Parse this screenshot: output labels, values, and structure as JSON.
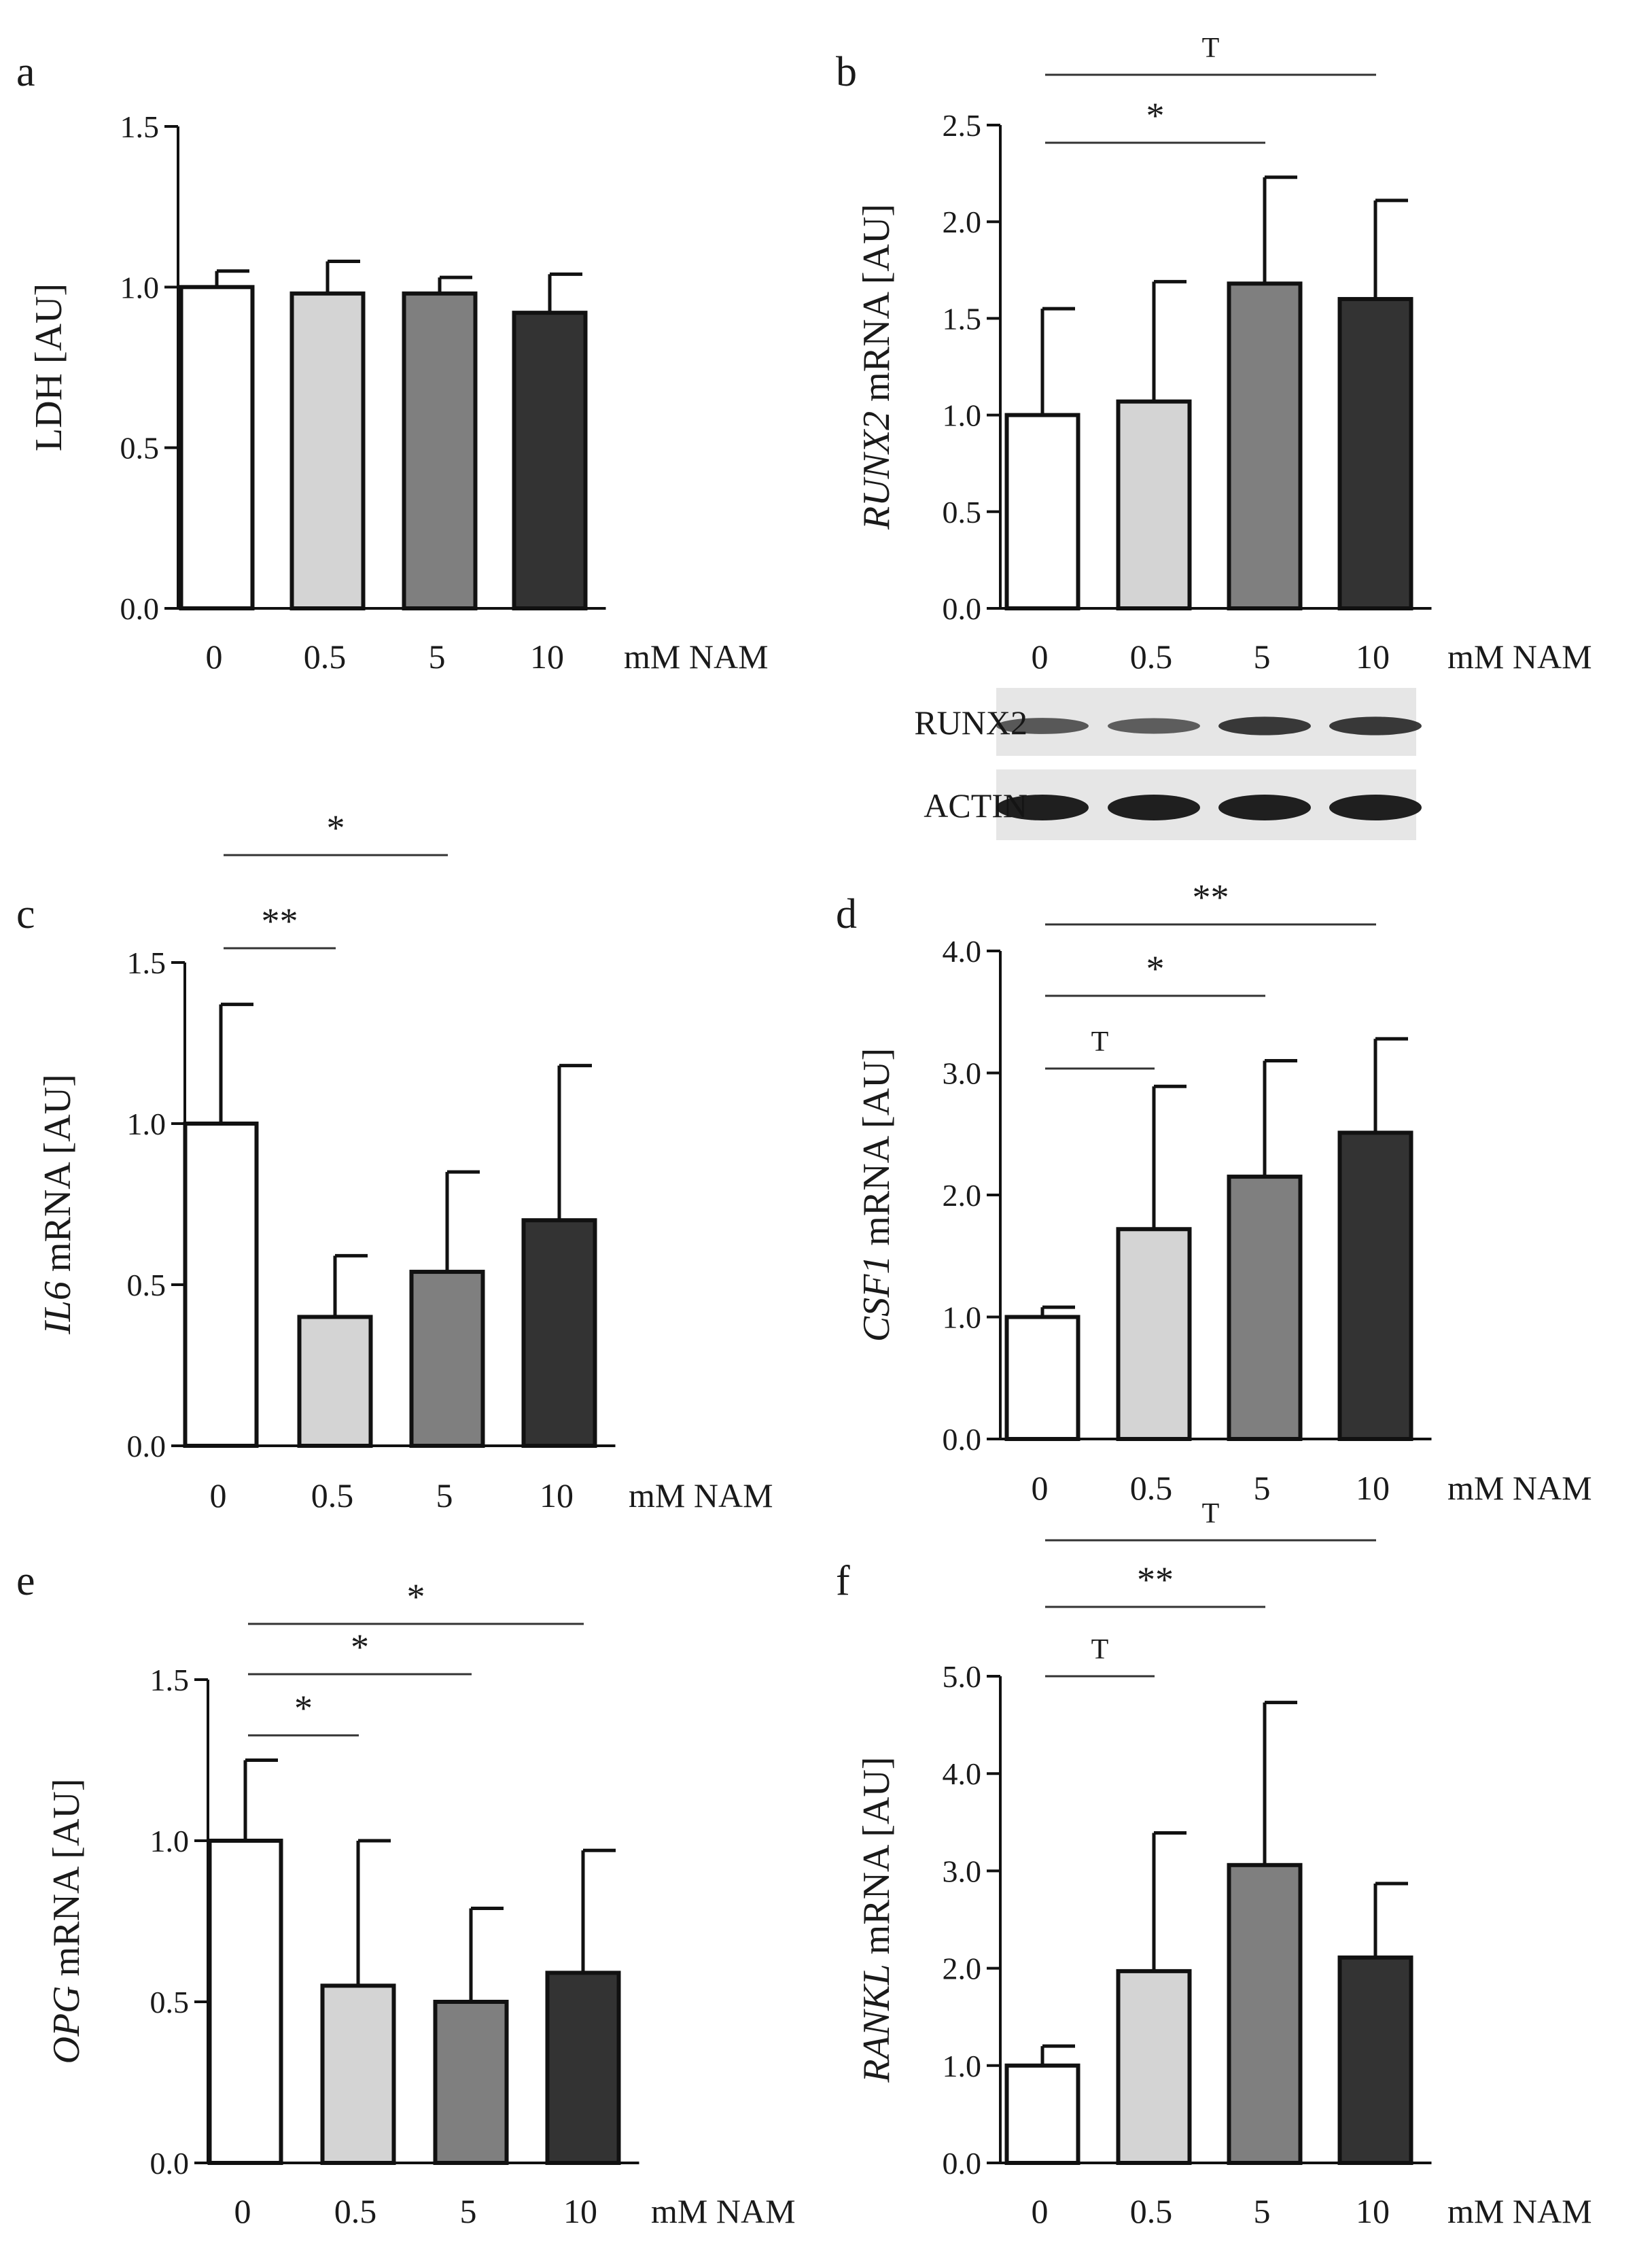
{
  "colors": {
    "bar_fills": [
      "#ffffff",
      "#d4d4d4",
      "#7f7f7f",
      "#333333"
    ],
    "stroke": "#111111",
    "blot_background": "#e6e6e6",
    "band": "#141414"
  },
  "western_blot": {
    "labels": [
      "RUNX2",
      "ACTIN"
    ],
    "intensity": [
      [
        0.55,
        0.5,
        0.8,
        0.8
      ],
      [
        1.0,
        1.0,
        1.0,
        1.0
      ]
    ]
  },
  "chart_data": [
    {
      "panel": "a",
      "type": "bar",
      "categories": [
        "0",
        "0.5",
        "5",
        "10"
      ],
      "unit_label": "mM NAM",
      "ylabel_italic": "",
      "ylabel": "LDH [AU]",
      "ylim": [
        0,
        1.5
      ],
      "yticks": [
        "0.0",
        "0.5",
        "1.0",
        "1.5"
      ],
      "ytick_values": [
        0,
        0.5,
        1.0,
        1.5
      ],
      "values": [
        1.0,
        0.98,
        0.98,
        0.92
      ],
      "errors": [
        0.05,
        0.1,
        0.05,
        0.12
      ],
      "significance": []
    },
    {
      "panel": "b",
      "type": "bar",
      "categories": [
        "0",
        "0.5",
        "5",
        "10"
      ],
      "unit_label": "mM NAM",
      "ylabel_italic": "RUNX2",
      "ylabel": " mRNA [AU]",
      "ylim": [
        0,
        2.5
      ],
      "yticks": [
        "0.0",
        "0.5",
        "1.0",
        "1.5",
        "2.0",
        "2.5"
      ],
      "ytick_values": [
        0,
        0.5,
        1.0,
        1.5,
        2.0,
        2.5
      ],
      "values": [
        1.0,
        1.07,
        1.68,
        1.6
      ],
      "errors": [
        0.55,
        0.62,
        0.55,
        0.51
      ],
      "significance": [
        {
          "from": 0,
          "to": 2,
          "label": "*"
        },
        {
          "from": 0,
          "to": 3,
          "label": "T"
        }
      ]
    },
    {
      "panel": "c",
      "type": "bar",
      "categories": [
        "0",
        "0.5",
        "5",
        "10"
      ],
      "unit_label": "mM NAM",
      "ylabel_italic": "IL6",
      "ylabel": " mRNA [AU]",
      "ylim": [
        0,
        1.5
      ],
      "yticks": [
        "0.0",
        "0.5",
        "1.0",
        "1.5"
      ],
      "ytick_values": [
        0,
        0.5,
        1.0,
        1.5
      ],
      "values": [
        1.0,
        0.4,
        0.54,
        0.7
      ],
      "errors": [
        0.37,
        0.19,
        0.31,
        0.48
      ],
      "significance": [
        {
          "from": 0,
          "to": 1,
          "label": "**"
        },
        {
          "from": 0,
          "to": 2,
          "label": "*"
        }
      ]
    },
    {
      "panel": "d",
      "type": "bar",
      "categories": [
        "0",
        "0.5",
        "5",
        "10"
      ],
      "unit_label": "mM NAM",
      "ylabel_italic": "CSF1",
      "ylabel": " mRNA [AU]",
      "ylim": [
        0,
        4.0
      ],
      "yticks": [
        "0.0",
        "1.0",
        "2.0",
        "3.0",
        "4.0"
      ],
      "ytick_values": [
        0,
        1.0,
        2.0,
        3.0,
        4.0
      ],
      "values": [
        1.0,
        1.72,
        2.15,
        2.51
      ],
      "errors": [
        0.08,
        1.17,
        0.95,
        0.77
      ],
      "significance": [
        {
          "from": 0,
          "to": 1,
          "label": "T"
        },
        {
          "from": 0,
          "to": 2,
          "label": "*"
        },
        {
          "from": 0,
          "to": 3,
          "label": "**"
        }
      ]
    },
    {
      "panel": "e",
      "type": "bar",
      "categories": [
        "0",
        "0.5",
        "5",
        "10"
      ],
      "unit_label": "mM NAM",
      "ylabel_italic": "OPG",
      "ylabel": " mRNA [AU]",
      "ylim": [
        0,
        1.5
      ],
      "yticks": [
        "0.0",
        "0.5",
        "1.0",
        "1.5"
      ],
      "ytick_values": [
        0,
        0.5,
        1.0,
        1.5
      ],
      "values": [
        1.0,
        0.55,
        0.5,
        0.59
      ],
      "errors": [
        0.25,
        0.45,
        0.29,
        0.38
      ],
      "significance": [
        {
          "from": 0,
          "to": 1,
          "label": "*"
        },
        {
          "from": 0,
          "to": 2,
          "label": "*"
        },
        {
          "from": 0,
          "to": 3,
          "label": "*"
        }
      ]
    },
    {
      "panel": "f",
      "type": "bar",
      "categories": [
        "0",
        "0.5",
        "5",
        "10"
      ],
      "unit_label": "mM NAM",
      "ylabel_italic": "RANKL",
      "ylabel": " mRNA [AU]",
      "ylim": [
        0,
        5.0
      ],
      "yticks": [
        "0.0",
        "1.0",
        "2.0",
        "3.0",
        "4.0",
        "5.0"
      ],
      "ytick_values": [
        0,
        1.0,
        2.0,
        3.0,
        4.0,
        5.0
      ],
      "values": [
        1.0,
        1.97,
        3.06,
        2.11
      ],
      "errors": [
        0.2,
        1.42,
        1.67,
        0.76
      ],
      "significance": [
        {
          "from": 0,
          "to": 1,
          "label": "T"
        },
        {
          "from": 0,
          "to": 2,
          "label": "**"
        },
        {
          "from": 0,
          "to": 3,
          "label": "T"
        }
      ]
    }
  ]
}
